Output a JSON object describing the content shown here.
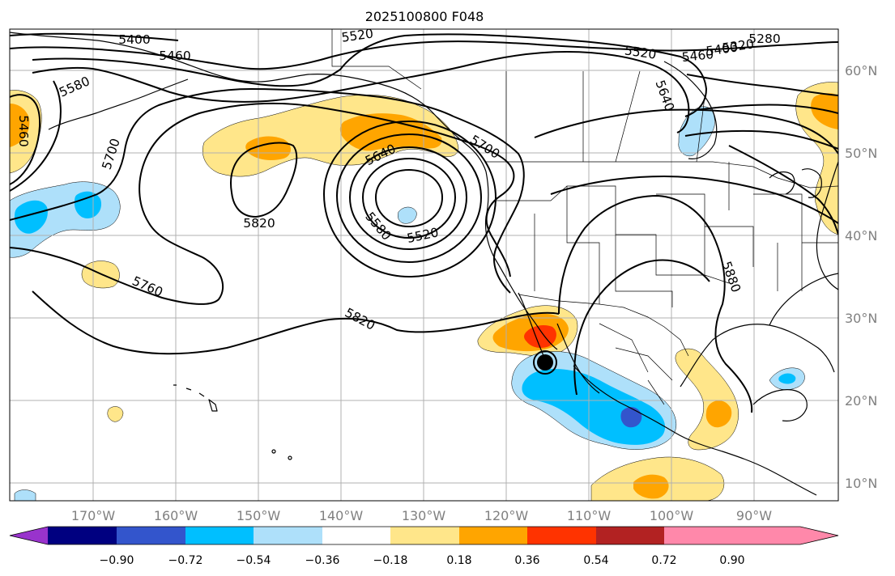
{
  "title": "2025100800 F048",
  "lat_labels": [
    "60°N",
    "50°N",
    "40°N",
    "30°N",
    "20°N",
    "10°N"
  ],
  "lon_labels": [
    "170°W",
    "160°W",
    "150°W",
    "140°W",
    "130°W",
    "120°W",
    "110°W",
    "100°W",
    "90°W"
  ],
  "colorbar": {
    "ticks": [
      "−0.90",
      "−0.72",
      "−0.54",
      "−0.36",
      "−0.18",
      "0.18",
      "0.36",
      "0.54",
      "0.72",
      "0.90"
    ],
    "colors": [
      "#9933cc",
      "#000080",
      "#3355cc",
      "#00bfff",
      "#aee0fa",
      "#ffffff",
      "#ffe68a",
      "#ffa500",
      "#ff3300",
      "#b22222",
      "#ff88aa"
    ]
  },
  "contour_labels": [
    "5400",
    "5460",
    "5520",
    "5280",
    "5320",
    "5400",
    "5460",
    "5520",
    "5580",
    "5460",
    "5700",
    "5640",
    "5820",
    "5760",
    "5820",
    "5640",
    "5700",
    "5580",
    "5520",
    "5880"
  ]
}
